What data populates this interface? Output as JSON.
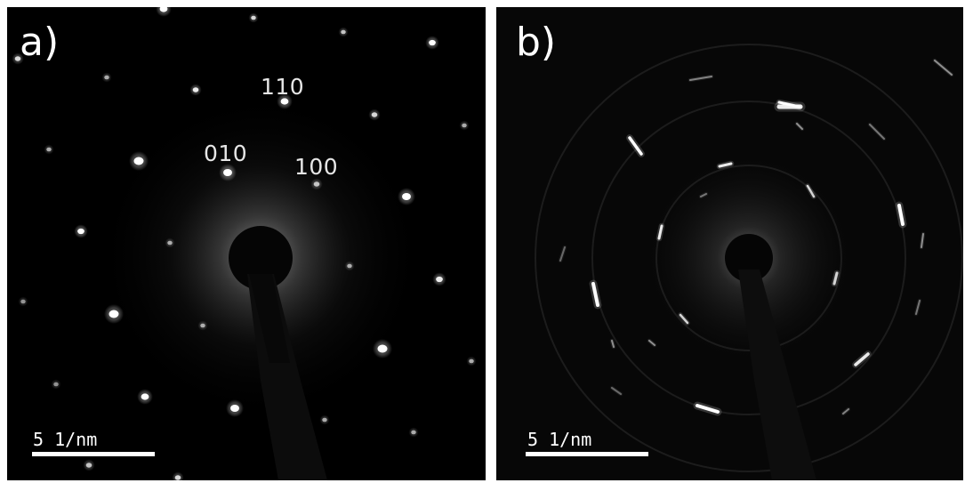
{
  "panels": [
    {
      "label": "a)",
      "pattern": "spot diffraction pattern",
      "index_labels": [
        "110",
        "010",
        "100"
      ],
      "scale_bar_label": "5 1/nm"
    },
    {
      "label": "b)",
      "pattern": "ring diffraction pattern",
      "scale_bar_label": "5 1/nm"
    }
  ],
  "colors": {
    "background": "#000000",
    "spots": "#ffffff",
    "text": "#ffffff",
    "figure_border": "#ffffff"
  }
}
